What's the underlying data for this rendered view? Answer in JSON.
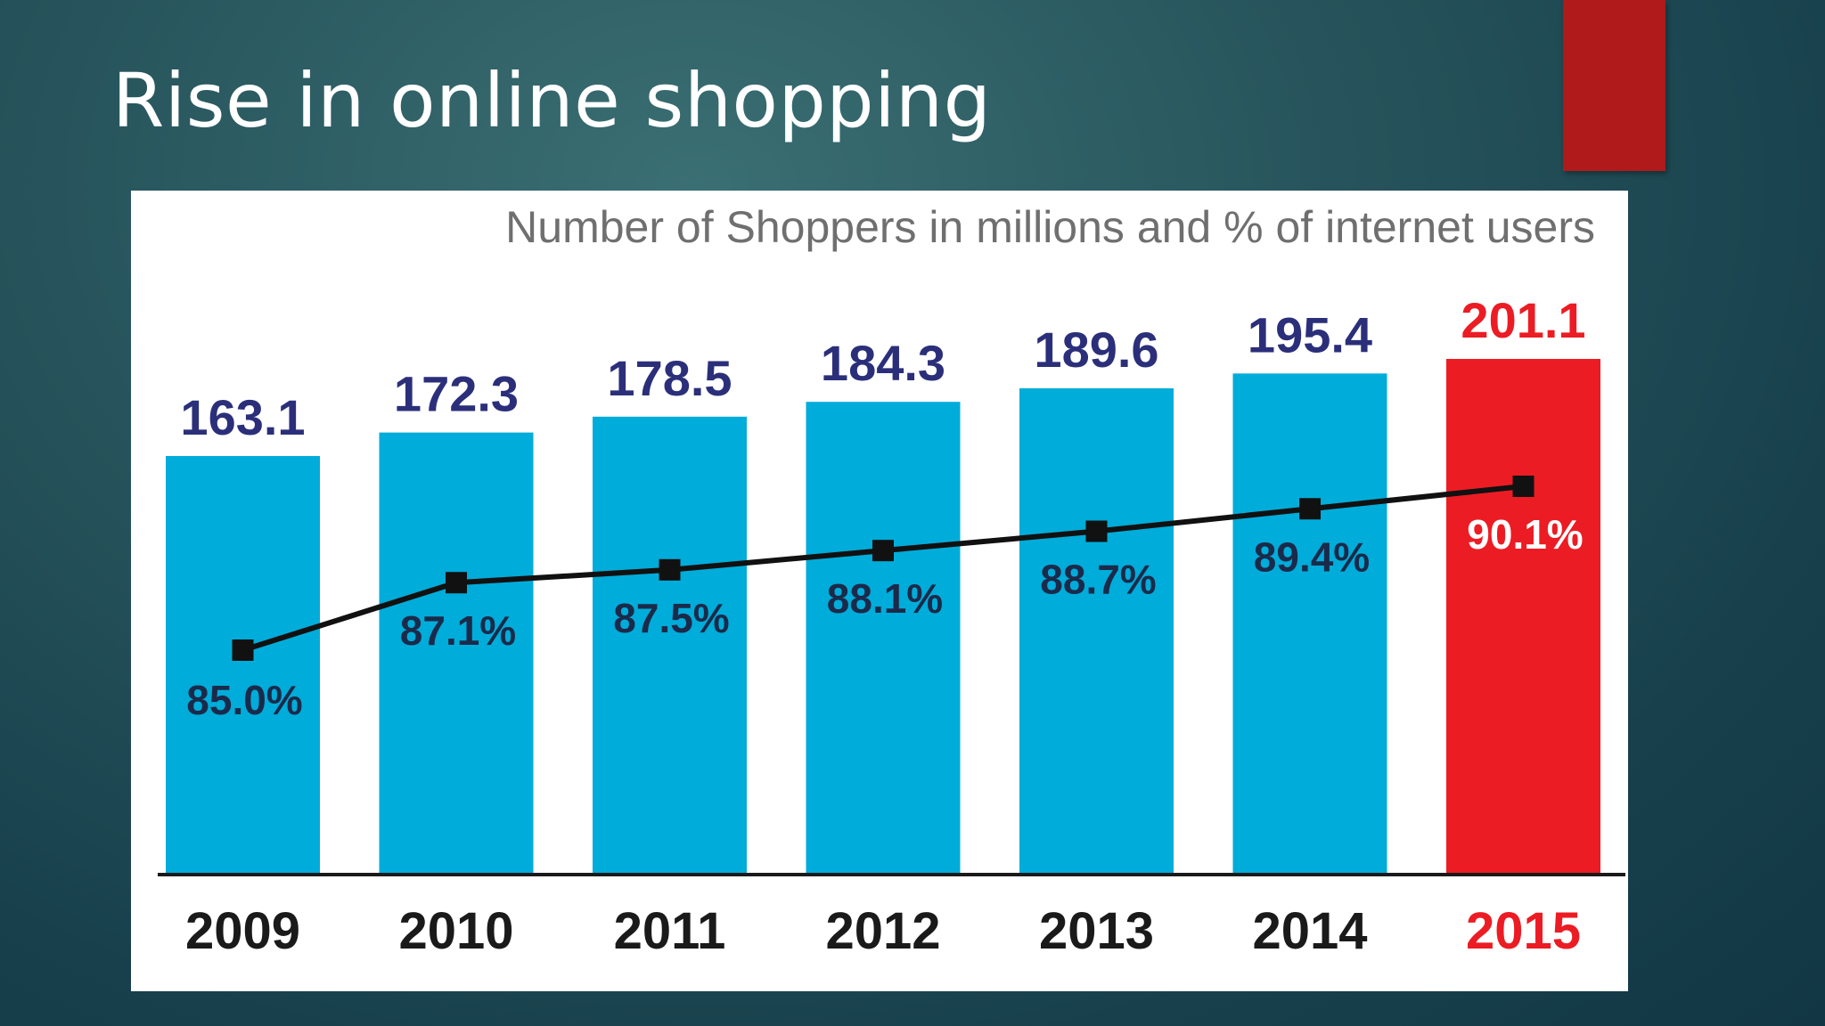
{
  "slide": {
    "title": "Rise in online shopping"
  },
  "colors": {
    "bar": "#00acd9",
    "highlight": "#ec1c24",
    "value_label": "#2b2f7a",
    "percent_label": "#1b2a4a",
    "highlight_text": "#ffffff",
    "year_label": "#1a1a1a",
    "line": "#111111",
    "accent_block": "#b01a1a"
  },
  "chart_data": {
    "type": "bar",
    "title": "Number of Shoppers in millions and % of internet users",
    "categories": [
      "2009",
      "2010",
      "2011",
      "2012",
      "2013",
      "2014",
      "2015"
    ],
    "value_labels": [
      "163.1",
      "172.3",
      "178.5",
      "184.3",
      "189.6",
      "195.4",
      "201.1"
    ],
    "percent_labels": [
      "85.0%",
      "87.1%",
      "87.5%",
      "88.1%",
      "88.7%",
      "89.4%",
      "90.1%"
    ],
    "highlight_category": "2015",
    "series": [
      {
        "type": "bar",
        "values": [
          163.1,
          172.3,
          178.5,
          184.3,
          189.6,
          195.4,
          201.1
        ]
      },
      {
        "type": "line",
        "values": [
          85.0,
          87.1,
          87.5,
          88.1,
          88.7,
          89.4,
          90.1
        ]
      }
    ],
    "legend": "none",
    "grid": false
  }
}
